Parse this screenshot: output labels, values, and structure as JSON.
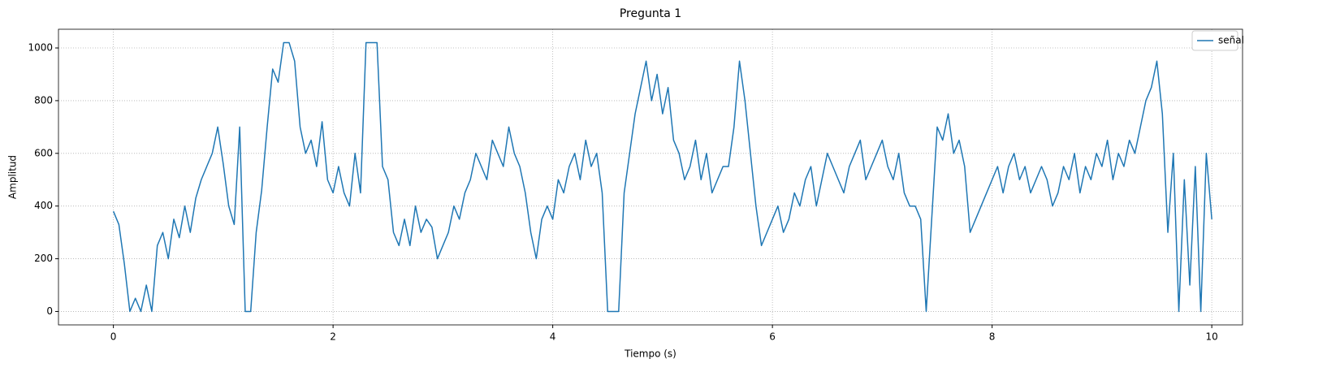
{
  "chart_data": {
    "type": "line",
    "title": "Pregunta 1",
    "xlabel": "Tiempo (s)",
    "ylabel": "Amplitud",
    "x": [
      0,
      0.05,
      0.1,
      0.15,
      0.2,
      0.25,
      0.3,
      0.35,
      0.4,
      0.45,
      0.5,
      0.55,
      0.6,
      0.65,
      0.7,
      0.75,
      0.8,
      0.85,
      0.9,
      0.95,
      1,
      1.05,
      1.1,
      1.15,
      1.2,
      1.25,
      1.3,
      1.35,
      1.4,
      1.45,
      1.5,
      1.55,
      1.6,
      1.65,
      1.7,
      1.75,
      1.8,
      1.85,
      1.9,
      1.95,
      2,
      2.05,
      2.1,
      2.15,
      2.2,
      2.25,
      2.3,
      2.35,
      2.4,
      2.45,
      2.5,
      2.55,
      2.6,
      2.65,
      2.7,
      2.75,
      2.8,
      2.85,
      2.9,
      2.95,
      3,
      3.05,
      3.1,
      3.15,
      3.2,
      3.25,
      3.3,
      3.35,
      3.4,
      3.45,
      3.5,
      3.55,
      3.6,
      3.65,
      3.7,
      3.75,
      3.8,
      3.85,
      3.9,
      3.95,
      4,
      4.05,
      4.1,
      4.15,
      4.2,
      4.25,
      4.3,
      4.35,
      4.4,
      4.45,
      4.5,
      4.55,
      4.6,
      4.65,
      4.7,
      4.75,
      4.8,
      4.85,
      4.9,
      4.95,
      5,
      5.05,
      5.1,
      5.15,
      5.2,
      5.25,
      5.3,
      5.35,
      5.4,
      5.45,
      5.5,
      5.55,
      5.6,
      5.65,
      5.7,
      5.75,
      5.8,
      5.85,
      5.9,
      5.95,
      6,
      6.05,
      6.1,
      6.15,
      6.2,
      6.25,
      6.3,
      6.35,
      6.4,
      6.45,
      6.5,
      6.55,
      6.6,
      6.65,
      6.7,
      6.75,
      6.8,
      6.85,
      6.9,
      6.95,
      7,
      7.05,
      7.1,
      7.15,
      7.2,
      7.25,
      7.3,
      7.35,
      7.4,
      7.45,
      7.5,
      7.55,
      7.6,
      7.65,
      7.7,
      7.75,
      7.8,
      7.85,
      7.9,
      7.95,
      8,
      8.05,
      8.1,
      8.15,
      8.2,
      8.25,
      8.3,
      8.35,
      8.4,
      8.45,
      8.5,
      8.55,
      8.6,
      8.65,
      8.7,
      8.75,
      8.8,
      8.85,
      8.9,
      8.95,
      9,
      9.05,
      9.1,
      9.15,
      9.2,
      9.25,
      9.3,
      9.35,
      9.4,
      9.45,
      9.5,
      9.55,
      9.6,
      9.65,
      9.7,
      9.75,
      9.8,
      9.85,
      9.9,
      9.95,
      10
    ],
    "series": [
      {
        "name": "señal",
        "color": "#1f77b4",
        "values": [
          380,
          330,
          180,
          0,
          50,
          0,
          100,
          0,
          250,
          300,
          200,
          350,
          280,
          400,
          300,
          430,
          500,
          550,
          600,
          700,
          560,
          400,
          330,
          700,
          0,
          0,
          300,
          460,
          700,
          920,
          870,
          1020,
          1020,
          950,
          700,
          600,
          650,
          550,
          720,
          500,
          450,
          550,
          450,
          400,
          600,
          450,
          1020,
          1020,
          1020,
          550,
          500,
          300,
          250,
          350,
          250,
          400,
          300,
          350,
          320,
          200,
          250,
          300,
          400,
          350,
          450,
          500,
          600,
          550,
          500,
          650,
          600,
          550,
          700,
          600,
          550,
          450,
          300,
          200,
          350,
          400,
          350,
          500,
          450,
          550,
          600,
          500,
          650,
          550,
          600,
          450,
          0,
          0,
          0,
          450,
          600,
          750,
          850,
          950,
          800,
          900,
          750,
          850,
          650,
          600,
          500,
          550,
          650,
          500,
          600,
          450,
          500,
          550,
          550,
          700,
          950,
          800,
          600,
          400,
          250,
          300,
          350,
          400,
          300,
          350,
          450,
          400,
          500,
          550,
          400,
          500,
          600,
          550,
          500,
          450,
          550,
          600,
          650,
          500,
          550,
          600,
          650,
          550,
          500,
          600,
          450,
          400,
          400,
          350,
          0,
          350,
          700,
          650,
          750,
          600,
          650,
          550,
          300,
          350,
          400,
          450,
          500,
          550,
          450,
          550,
          600,
          500,
          550,
          450,
          500,
          550,
          500,
          400,
          450,
          550,
          500,
          600,
          450,
          550,
          500,
          600,
          550,
          650,
          500,
          600,
          550,
          650,
          600,
          700,
          800,
          850,
          950,
          750,
          300,
          600,
          0,
          500,
          100,
          550,
          0,
          600,
          350
        ]
      }
    ],
    "xlim": [
      -0.5,
      10.28
    ],
    "ylim": [
      -51,
      1071
    ],
    "xticks": [
      0,
      2,
      4,
      6,
      8,
      10
    ],
    "yticks": [
      0,
      200,
      400,
      600,
      800,
      1000
    ],
    "grid": true,
    "legend": "upper right"
  }
}
